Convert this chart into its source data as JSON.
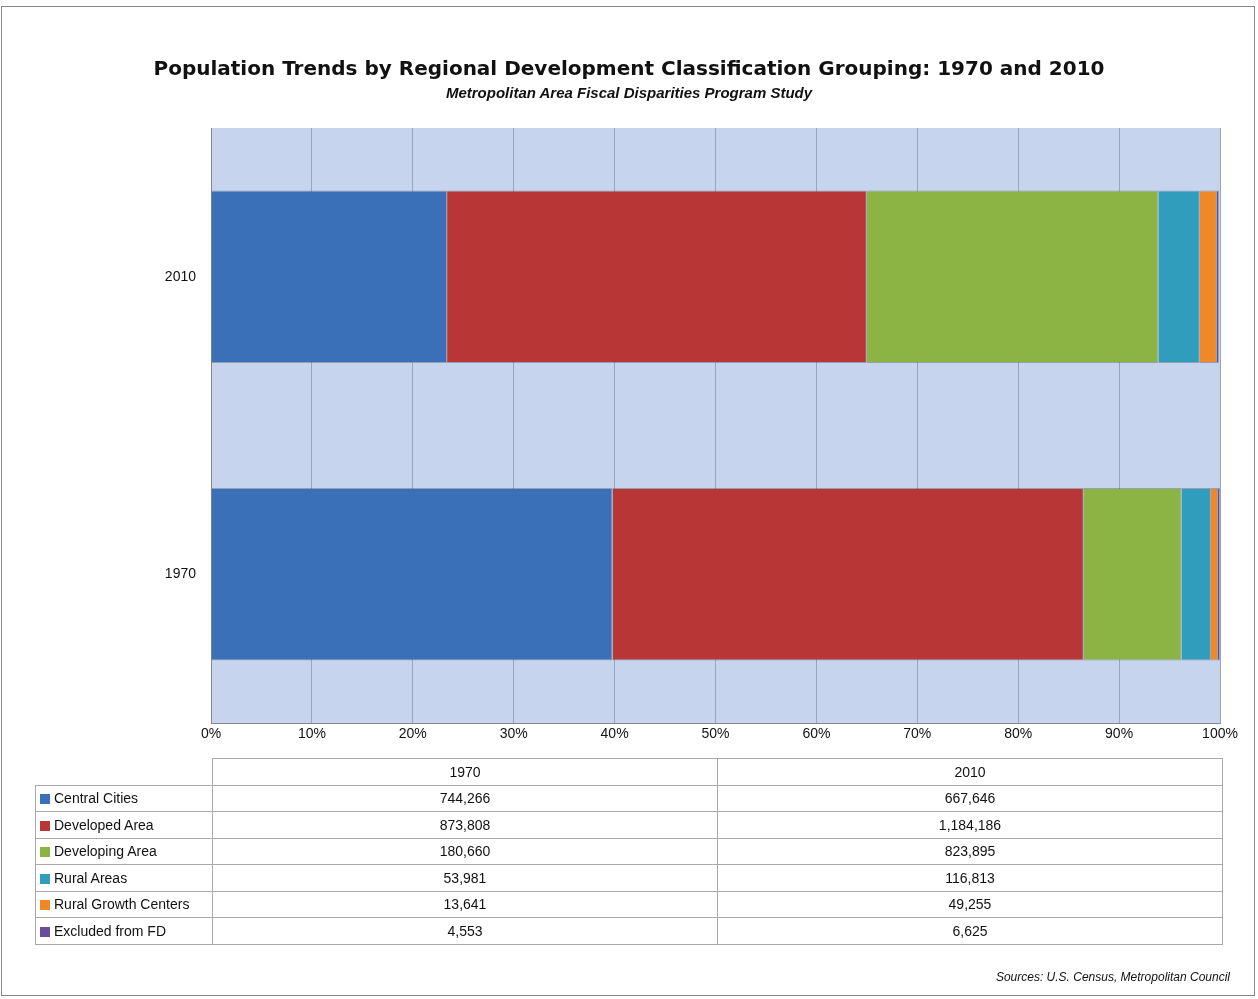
{
  "chart_data": {
    "type": "bar",
    "orientation": "horizontal",
    "stacked": true,
    "title": "Population Trends by Regional Development Classification Grouping:  1970 and 2010",
    "subtitle": "Metropolitan Area Fiscal Disparities Program Study",
    "categories": [
      "2010",
      "1970"
    ],
    "series": [
      {
        "name": "Central Cities",
        "color": "#3a70b8",
        "values": [
          23.4,
          39.8
        ]
      },
      {
        "name": "Developed Area",
        "color": "#b83636",
        "values": [
          41.6,
          46.7
        ]
      },
      {
        "name": "Developing Area",
        "color": "#8cb444",
        "values": [
          28.9,
          9.7
        ]
      },
      {
        "name": "Rural Areas",
        "color": "#2f9dbb",
        "values": [
          4.1,
          2.9
        ]
      },
      {
        "name": "Rural Growth Centers",
        "color": "#f08828",
        "values": [
          1.7,
          0.7
        ]
      },
      {
        "name": "Excluded from FD",
        "color": "#6a4c9c",
        "values": [
          0.2,
          0.2
        ]
      }
    ],
    "xlim": [
      0,
      100
    ],
    "xticks": [
      {
        "value": 0,
        "label": "0%"
      },
      {
        "value": 10,
        "label": "10%"
      },
      {
        "value": 20,
        "label": "20%"
      },
      {
        "value": 30,
        "label": "30%"
      },
      {
        "value": 40,
        "label": "40%"
      },
      {
        "value": 50,
        "label": "50%"
      },
      {
        "value": 60,
        "label": "60%"
      },
      {
        "value": 70,
        "label": "70%"
      },
      {
        "value": 80,
        "label": "80%"
      },
      {
        "value": 90,
        "label": "90%"
      },
      {
        "value": 100,
        "label": "100%"
      }
    ],
    "grid": "x",
    "legend": "bottom",
    "annotations": [
      "1970",
      "2010",
      "744,266",
      "667,646",
      "873,808",
      "1,184,186",
      "180,660",
      "823,895",
      "53,981",
      "116,813",
      "13,641",
      "49,255",
      "4,553",
      "6,625",
      "Sources: U.S. Census, Metropolitan Council"
    ]
  }
}
